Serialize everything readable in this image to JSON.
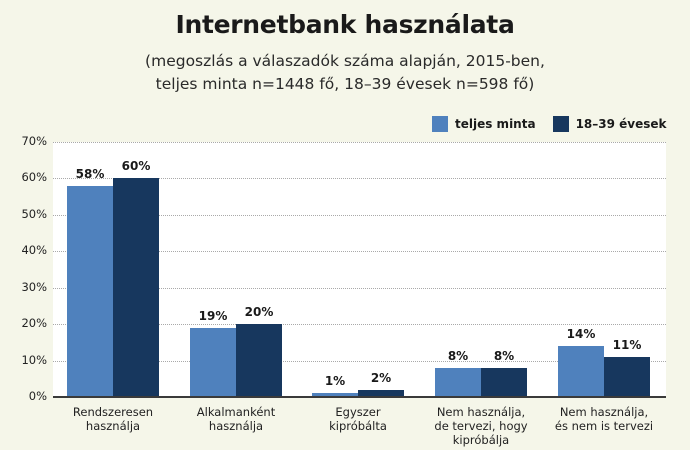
{
  "header": {
    "title": "Internetbank használata",
    "subtitle_line1": "(megoszlás a válaszadók száma alapján, 2015-ben,",
    "subtitle_line2": "teljes minta n=1448 fő, 18–39 évesek n=598 fő)"
  },
  "legend": [
    {
      "label": "teljes minta",
      "color": "#4f81bd"
    },
    {
      "label": "18–39 évesek",
      "color": "#17375e"
    }
  ],
  "y_ticks": [
    "0%",
    "10%",
    "20%",
    "30%",
    "40%",
    "50%",
    "60%",
    "70%"
  ],
  "chart_data": {
    "type": "bar",
    "title": "Internetbank használata",
    "subtitle": "(megoszlás a válaszadók száma alapján, 2015-ben, teljes minta n=1448 fő, 18–39 évesek n=598 fő)",
    "categories": [
      "Rendszeresen\nhasználja",
      "Alkalmanként\nhasználja",
      "Egyszer\nkipróbálta",
      "Nem használja,\nde tervezi, hogy\nkipróbálja",
      "Nem használja,\nés nem is tervezi"
    ],
    "series": [
      {
        "name": "teljes minta",
        "color": "#4f81bd",
        "values": [
          58,
          19,
          1,
          8,
          14
        ],
        "labels": [
          "58%",
          "19%",
          "1%",
          "8%",
          "14%"
        ]
      },
      {
        "name": "18–39 évesek",
        "color": "#17375e",
        "values": [
          60,
          20,
          2,
          8,
          11
        ],
        "labels": [
          "60%",
          "20%",
          "2%",
          "8%",
          "11%"
        ]
      }
    ],
    "xlabel": "",
    "ylabel": "",
    "ylim": [
      0,
      70
    ],
    "y_tick_step": 10,
    "y_format": "percent",
    "grid": true,
    "grid_style": "dotted horizontal",
    "legend_position": "top-right",
    "data_labels": true
  }
}
